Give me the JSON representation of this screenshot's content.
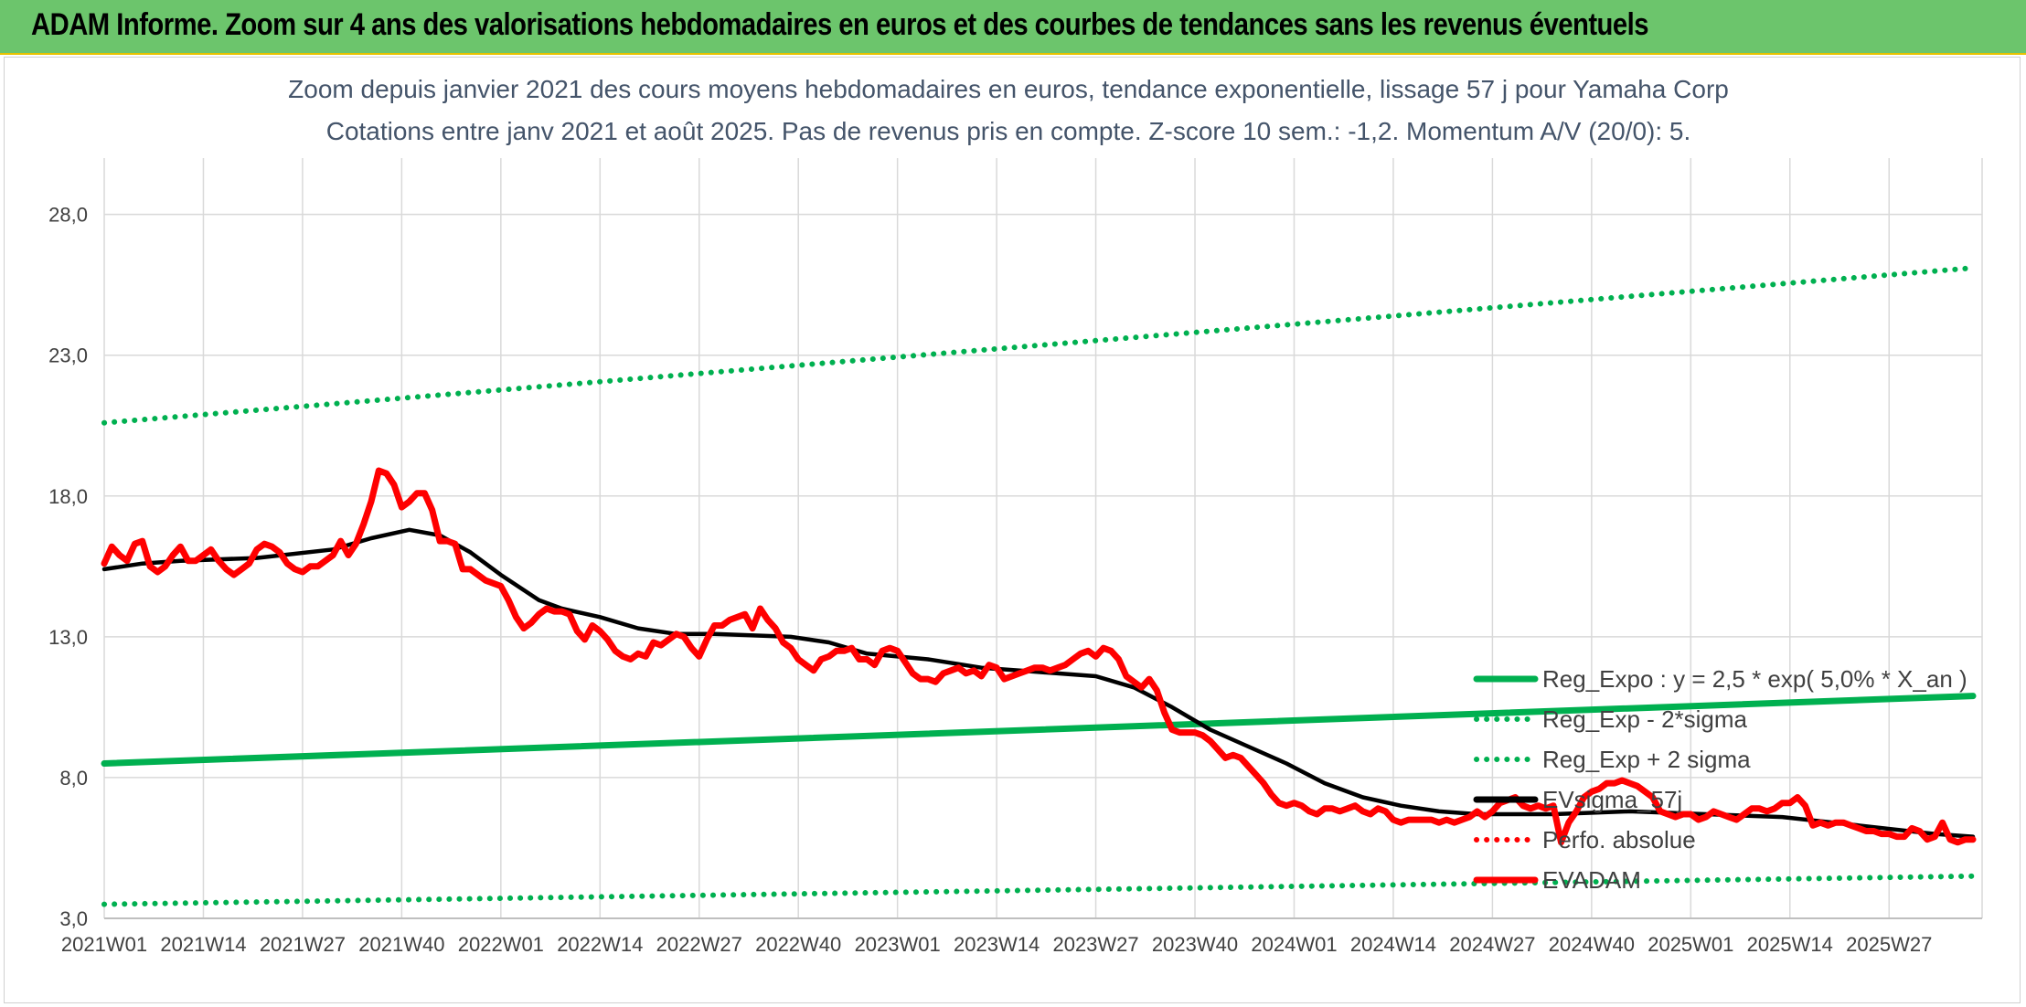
{
  "banner": {
    "title": "ADAM Informe. Zoom sur 4 ans des valorisations hebdomadaires en euros et des courbes de tendances sans les revenus éventuels"
  },
  "colors": {
    "banner_bg": "#6cc56c",
    "green": "#00b050",
    "red": "#ff0000",
    "black": "#000000",
    "grid": "#d9d9d9",
    "title_text": "#44546a"
  },
  "chart_data": {
    "type": "line",
    "title": "Zoom depuis janvier 2021 des cours moyens hebdomadaires en euros, tendance exponentielle, lissage 57 j pour Yamaha Corp",
    "subtitle": "Cotations entre janv 2021 et août 2025. Pas de revenus pris en compte. Z-score 10 sem.: -1,2. Momentum A/V (20/0): 5.",
    "x_tick_labels": [
      "2021W01",
      "2021W14",
      "2021W27",
      "2021W40",
      "2022W01",
      "2022W14",
      "2022W27",
      "2022W40",
      "2023W01",
      "2023W14",
      "2023W27",
      "2023W40",
      "2024W01",
      "2024W14",
      "2024W27",
      "2024W40",
      "2025W01",
      "2025W14",
      "2025W27"
    ],
    "y_tick_labels": [
      "3,0",
      "8,0",
      "13,0",
      "18,0",
      "23,0",
      "28,0"
    ],
    "ylim": [
      3,
      30
    ],
    "xlim_weeks": [
      0,
      245
    ],
    "grid": true,
    "legend_position": "bottom-right",
    "series": [
      {
        "name": "Reg_Expo : y = 2,5 * exp( 5,0% *  X_an )",
        "style": "solid",
        "color": "#00b050",
        "x": [
          0,
          245
        ],
        "values": [
          8.5,
          10.9
        ]
      },
      {
        "name": "Reg_Exp - 2*sigma",
        "style": "dotted",
        "color": "#00b050",
        "x": [
          0,
          245
        ],
        "values": [
          3.5,
          4.5
        ]
      },
      {
        "name": "Reg_Exp + 2 sigma",
        "style": "dotted",
        "color": "#00b050",
        "x": [
          0,
          245
        ],
        "values": [
          20.6,
          26.1
        ]
      },
      {
        "name": "EVsigma_57j",
        "style": "solid",
        "color": "#000000",
        "x": [
          0,
          5,
          10,
          20,
          30,
          35,
          40,
          44,
          48,
          52,
          57,
          60,
          65,
          70,
          75,
          80,
          90,
          95,
          100,
          108,
          115,
          120,
          125,
          130,
          135,
          140,
          145,
          150,
          155,
          160,
          165,
          170,
          175,
          180,
          185,
          190,
          200,
          210,
          220,
          230,
          240,
          245
        ],
        "values": [
          15.4,
          15.6,
          15.7,
          15.8,
          16.1,
          16.5,
          16.8,
          16.6,
          16.0,
          15.2,
          14.3,
          14.0,
          13.7,
          13.3,
          13.1,
          13.1,
          13.0,
          12.8,
          12.4,
          12.2,
          11.9,
          11.8,
          11.7,
          11.6,
          11.2,
          10.5,
          9.7,
          9.1,
          8.5,
          7.8,
          7.3,
          7.0,
          6.8,
          6.7,
          6.7,
          6.7,
          6.8,
          6.7,
          6.6,
          6.3,
          6.0,
          5.9
        ]
      },
      {
        "name": "Perfo. absolue",
        "style": "dotted",
        "color": "#ff0000",
        "x": [],
        "values": []
      },
      {
        "name": "EVADAM",
        "style": "solid",
        "color": "#ff0000",
        "x": [
          0,
          1,
          2,
          3,
          4,
          5,
          6,
          7,
          8,
          9,
          10,
          11,
          12,
          13,
          14,
          15,
          16,
          17,
          18,
          19,
          20,
          21,
          22,
          23,
          24,
          25,
          26,
          27,
          28,
          29,
          30,
          31,
          32,
          33,
          34,
          35,
          36,
          37,
          38,
          39,
          40,
          41,
          42,
          43,
          44,
          45,
          46,
          47,
          48,
          49,
          50,
          51,
          52,
          53,
          54,
          55,
          56,
          57,
          58,
          59,
          60,
          61,
          62,
          63,
          64,
          65,
          66,
          67,
          68,
          69,
          70,
          71,
          72,
          73,
          74,
          75,
          76,
          77,
          78,
          79,
          80,
          81,
          82,
          83,
          84,
          85,
          86,
          87,
          88,
          89,
          90,
          91,
          92,
          93,
          94,
          95,
          96,
          97,
          98,
          99,
          100,
          101,
          102,
          103,
          104,
          105,
          106,
          107,
          108,
          109,
          110,
          111,
          112,
          113,
          114,
          115,
          116,
          117,
          118,
          119,
          120,
          121,
          122,
          123,
          124,
          125,
          126,
          127,
          128,
          129,
          130,
          131,
          132,
          133,
          134,
          135,
          136,
          137,
          138,
          139,
          140,
          141,
          142,
          143,
          144,
          145,
          146,
          147,
          148,
          149,
          150,
          151,
          152,
          153,
          154,
          155,
          156,
          157,
          158,
          159,
          160,
          161,
          162,
          163,
          164,
          165,
          166,
          167,
          168,
          169,
          170,
          171,
          172,
          173,
          174,
          175,
          176,
          177,
          178,
          179,
          180,
          181,
          182,
          183,
          184,
          185,
          186,
          187,
          188,
          189,
          190,
          191,
          192,
          193,
          194,
          195,
          196,
          197,
          198,
          199,
          200,
          201,
          202,
          203,
          204,
          205,
          206,
          207,
          208,
          209,
          210,
          211,
          212,
          213,
          214,
          215,
          216,
          217,
          218,
          219,
          220,
          221,
          222,
          223,
          224,
          225,
          226,
          227,
          228,
          229,
          230,
          231,
          232,
          233,
          234,
          235,
          236,
          237,
          238,
          239,
          240,
          241,
          242,
          243,
          244,
          245
        ],
        "values": [
          15.6,
          16.2,
          15.9,
          15.7,
          16.3,
          16.4,
          15.5,
          15.3,
          15.5,
          15.9,
          16.2,
          15.7,
          15.7,
          15.9,
          16.1,
          15.7,
          15.4,
          15.2,
          15.4,
          15.6,
          16.1,
          16.3,
          16.2,
          16.0,
          15.6,
          15.4,
          15.3,
          15.5,
          15.5,
          15.7,
          15.9,
          16.4,
          15.9,
          16.3,
          17.0,
          17.8,
          18.9,
          18.8,
          18.4,
          17.6,
          17.8,
          18.1,
          18.1,
          17.5,
          16.4,
          16.4,
          16.3,
          15.4,
          15.4,
          15.2,
          15.0,
          14.9,
          14.8,
          14.3,
          13.7,
          13.3,
          13.5,
          13.8,
          14.0,
          13.9,
          13.9,
          13.8,
          13.2,
          12.9,
          13.4,
          13.2,
          12.9,
          12.5,
          12.3,
          12.2,
          12.4,
          12.3,
          12.8,
          12.7,
          12.9,
          13.1,
          13.0,
          12.6,
          12.3,
          12.9,
          13.4,
          13.4,
          13.6,
          13.7,
          13.8,
          13.3,
          14.0,
          13.6,
          13.3,
          12.8,
          12.6,
          12.2,
          12.0,
          11.8,
          12.2,
          12.3,
          12.5,
          12.5,
          12.6,
          12.2,
          12.2,
          12.0,
          12.5,
          12.6,
          12.5,
          12.1,
          11.7,
          11.5,
          11.5,
          11.4,
          11.7,
          11.8,
          11.9,
          11.7,
          11.8,
          11.6,
          12.0,
          11.9,
          11.5,
          11.6,
          11.7,
          11.8,
          11.9,
          11.9,
          11.8,
          11.9,
          12.0,
          12.2,
          12.4,
          12.5,
          12.3,
          12.6,
          12.5,
          12.2,
          11.6,
          11.4,
          11.2,
          11.5,
          11.1,
          10.3,
          9.7,
          9.6,
          9.6,
          9.6,
          9.5,
          9.3,
          9.0,
          8.7,
          8.8,
          8.7,
          8.4,
          8.1,
          7.8,
          7.4,
          7.1,
          7.0,
          7.1,
          7.0,
          6.8,
          6.7,
          6.9,
          6.9,
          6.8,
          6.9,
          7.0,
          6.8,
          6.7,
          6.9,
          6.8,
          6.5,
          6.4,
          6.5,
          6.5,
          6.5,
          6.5,
          6.4,
          6.5,
          6.4,
          6.5,
          6.6,
          6.8,
          6.6,
          6.8,
          7.1,
          7.2,
          7.3,
          7.0,
          6.9,
          7.0,
          6.9,
          7.0,
          5.7,
          6.4,
          6.8,
          7.3,
          7.5,
          7.6,
          7.8,
          7.8,
          7.9,
          7.8,
          7.7,
          7.5,
          7.3,
          6.8,
          6.7,
          6.6,
          6.7,
          6.7,
          6.5,
          6.6,
          6.8,
          6.7,
          6.6,
          6.5,
          6.7,
          6.9,
          6.9,
          6.8,
          6.9,
          7.1,
          7.1,
          7.3,
          7.0,
          6.3,
          6.4,
          6.3,
          6.4,
          6.4,
          6.3,
          6.2,
          6.1,
          6.1,
          6.0,
          6.0,
          5.9,
          5.9,
          6.2,
          6.1,
          5.8,
          5.9,
          6.4,
          5.8,
          5.7,
          5.8,
          5.8
        ]
      }
    ]
  }
}
